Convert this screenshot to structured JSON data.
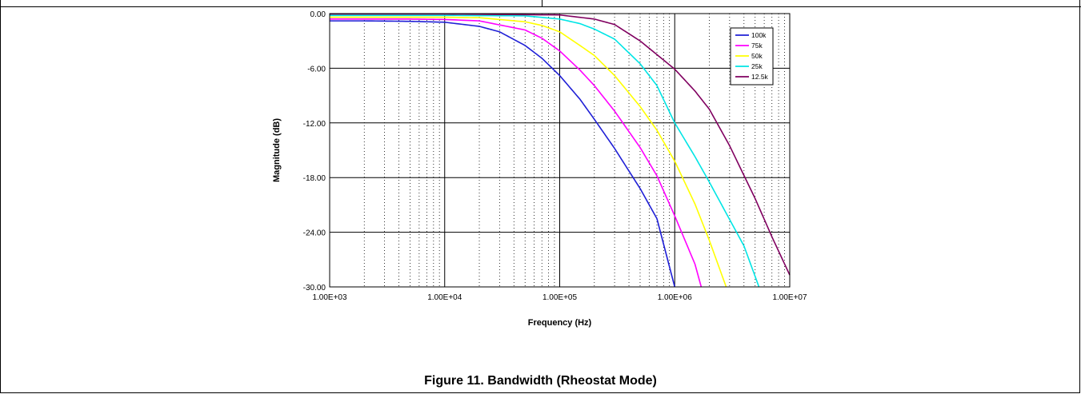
{
  "caption": "Figure 11. Bandwidth (Rheostat Mode)",
  "chart_data": {
    "type": "line",
    "x_scale": "log",
    "xlabel": "Frequency (Hz)",
    "ylabel": "Magnitude (dB)",
    "xlim": [
      1000,
      10000000
    ],
    "ylim": [
      -30,
      0
    ],
    "x_tick_labels": [
      "1.00E+03",
      "1.00E+04",
      "1.00E+05",
      "1.00E+06",
      "1.00E+07"
    ],
    "y_tick_labels": [
      "0.00",
      "-6.00",
      "-12.00",
      "-18.00",
      "-24.00",
      "-30.00"
    ],
    "grid": true,
    "legend_position": "top-right",
    "series": [
      {
        "name": "100k",
        "color": "#1f1fd6",
        "x": [
          1000,
          2000,
          5000,
          10000,
          20000,
          30000,
          50000,
          70000,
          100000,
          150000,
          200000,
          300000,
          500000,
          700000,
          1000000
        ],
        "y": [
          -0.8,
          -0.8,
          -0.85,
          -0.95,
          -1.4,
          -2.0,
          -3.5,
          -4.9,
          -6.8,
          -9.4,
          -11.6,
          -14.8,
          -19.2,
          -22.5,
          -30.0
        ]
      },
      {
        "name": "75k",
        "color": "#ff00ff",
        "x": [
          1000,
          5000,
          10000,
          20000,
          50000,
          70000,
          100000,
          150000,
          200000,
          300000,
          500000,
          700000,
          1000000,
          1500000,
          1700000
        ],
        "y": [
          -0.6,
          -0.6,
          -0.65,
          -0.8,
          -1.8,
          -2.7,
          -4.1,
          -6.2,
          -7.9,
          -10.7,
          -14.7,
          -17.8,
          -22.2,
          -27.5,
          -30.0
        ]
      },
      {
        "name": "50k",
        "color": "#ffff00",
        "x": [
          1000,
          10000,
          20000,
          50000,
          70000,
          100000,
          150000,
          200000,
          300000,
          500000,
          700000,
          1000000,
          1500000,
          2000000,
          2800000
        ],
        "y": [
          -0.4,
          -0.4,
          -0.45,
          -0.9,
          -1.3,
          -2.0,
          -3.5,
          -4.6,
          -6.8,
          -10.2,
          -12.8,
          -16.2,
          -20.9,
          -24.9,
          -30.0
        ]
      },
      {
        "name": "25k",
        "color": "#00e5e5",
        "x": [
          1000,
          10000,
          50000,
          100000,
          150000,
          200000,
          300000,
          500000,
          700000,
          1000000,
          1500000,
          2000000,
          3000000,
          4000000,
          5400000
        ],
        "y": [
          -0.2,
          -0.2,
          -0.25,
          -0.6,
          -1.1,
          -1.7,
          -2.8,
          -5.5,
          -7.9,
          -12.0,
          -15.7,
          -18.5,
          -22.6,
          -25.5,
          -30.0
        ]
      },
      {
        "name": "12.5k",
        "color": "#800060",
        "x": [
          1000,
          10000,
          100000,
          200000,
          300000,
          500000,
          700000,
          1000000,
          1500000,
          2000000,
          3000000,
          5000000,
          7000000,
          10000000
        ],
        "y": [
          -0.05,
          -0.05,
          -0.15,
          -0.6,
          -1.2,
          -3.0,
          -4.5,
          -6.1,
          -8.5,
          -10.5,
          -14.5,
          -20.3,
          -24.5,
          -28.7
        ]
      }
    ]
  }
}
